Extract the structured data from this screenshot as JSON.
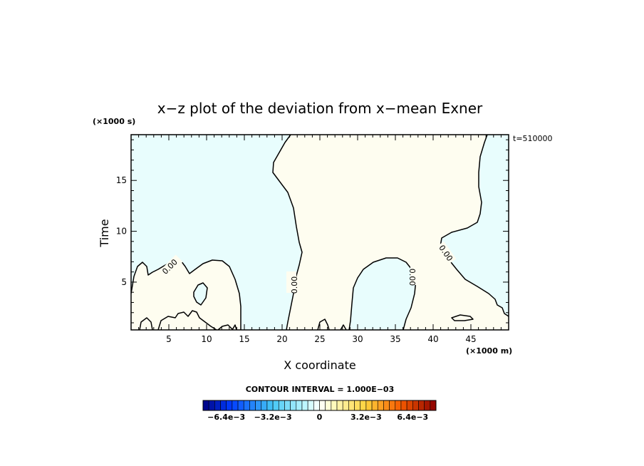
{
  "chart_data": {
    "type": "contour",
    "title": "x−z plot of the deviation from x−mean Exner",
    "xlabel": "X coordinate",
    "ylabel": "Time",
    "x_unit": "(×1000 m)",
    "y_unit": "(×1000 s)",
    "time_annotation": "t=510000",
    "xlim": [
      0,
      50
    ],
    "ylim": [
      0.3,
      19.5
    ],
    "x_ticks": [
      "5",
      "10",
      "15",
      "20",
      "25",
      "30",
      "35",
      "40",
      "45"
    ],
    "y_ticks": [
      "5",
      "10",
      "15"
    ],
    "contour_level_label": "0.00",
    "contour_interval_text": "CONTOUR INTERVAL = 1.000E−03",
    "colorbar_labels": [
      "−6.4e−3",
      "−3.2e−3",
      "0",
      "3.2e−3",
      "6.4e−3"
    ],
    "colorbar_range": [
      -0.008,
      0.008
    ],
    "colors": {
      "negative_fill": "#e8fdfd",
      "positive_fill": "#fefdf0",
      "contour_line": "#000000"
    }
  }
}
